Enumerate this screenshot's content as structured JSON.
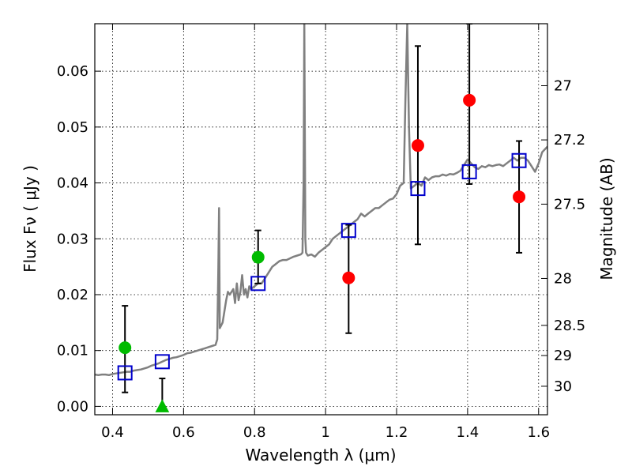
{
  "chart_data": {
    "type": "scatter",
    "xlabel": "Wavelength  λ (μm)",
    "ylabel": "Flux  Fν  ( μJy )",
    "y2label": "Magnitude (AB)",
    "xlim": [
      0.35,
      1.625
    ],
    "ylim": [
      -0.0015,
      0.0685
    ],
    "x_ticks": [
      0.4,
      0.6,
      0.8,
      1.0,
      1.2,
      1.4,
      1.6
    ],
    "x_tick_labels": [
      "0.4",
      "0.6",
      "0.8",
      "1",
      "1.2",
      "1.4",
      "1.6"
    ],
    "y_ticks": [
      0.0,
      0.01,
      0.02,
      0.03,
      0.04,
      0.05,
      0.06
    ],
    "y_tick_labels": [
      "0.00",
      "0.01",
      "0.02",
      "0.03",
      "0.04",
      "0.05",
      "0.06"
    ],
    "y2_ticks": [
      {
        "flux": 0.0574,
        "label": "27"
      },
      {
        "flux": 0.0477,
        "label": "27.2"
      },
      {
        "flux": 0.0362,
        "label": "27.5"
      },
      {
        "flux": 0.0229,
        "label": "28"
      },
      {
        "flux": 0.0145,
        "label": "28.5"
      },
      {
        "flux": 0.0091,
        "label": "29"
      },
      {
        "flux": 0.0036,
        "label": "30"
      }
    ],
    "grid": true,
    "colors": {
      "model": "#808080",
      "box": "#0000cc",
      "green": "#00bb00",
      "red": "#ff0000",
      "errorbar": "#000000"
    },
    "model_spectrum": {
      "x": [
        0.35,
        0.36,
        0.37,
        0.38,
        0.39,
        0.4,
        0.41,
        0.42,
        0.43,
        0.44,
        0.45,
        0.46,
        0.47,
        0.48,
        0.49,
        0.5,
        0.51,
        0.52,
        0.53,
        0.54,
        0.55,
        0.56,
        0.57,
        0.58,
        0.59,
        0.6,
        0.61,
        0.62,
        0.63,
        0.64,
        0.65,
        0.66,
        0.67,
        0.68,
        0.69,
        0.695,
        0.698,
        0.7,
        0.702,
        0.71,
        0.72,
        0.725,
        0.73,
        0.74,
        0.745,
        0.75,
        0.755,
        0.76,
        0.765,
        0.77,
        0.775,
        0.78,
        0.785,
        0.79,
        0.8,
        0.81,
        0.82,
        0.83,
        0.84,
        0.85,
        0.86,
        0.87,
        0.88,
        0.89,
        0.9,
        0.91,
        0.92,
        0.93,
        0.935,
        0.938,
        0.94,
        0.943,
        0.945,
        0.95,
        0.96,
        0.97,
        0.98,
        0.99,
        1.0,
        1.01,
        1.02,
        1.03,
        1.04,
        1.05,
        1.06,
        1.07,
        1.08,
        1.09,
        1.1,
        1.11,
        1.12,
        1.13,
        1.14,
        1.15,
        1.16,
        1.17,
        1.18,
        1.19,
        1.2,
        1.21,
        1.22,
        1.225,
        1.23,
        1.235,
        1.24,
        1.25,
        1.26,
        1.27,
        1.28,
        1.29,
        1.3,
        1.31,
        1.32,
        1.33,
        1.34,
        1.35,
        1.36,
        1.37,
        1.38,
        1.39,
        1.4,
        1.41,
        1.42,
        1.43,
        1.44,
        1.45,
        1.46,
        1.47,
        1.48,
        1.49,
        1.5,
        1.51,
        1.52,
        1.53,
        1.54,
        1.55,
        1.56,
        1.57,
        1.58,
        1.59,
        1.6,
        1.61,
        1.625
      ],
      "y": [
        0.0057,
        0.0056,
        0.0057,
        0.0057,
        0.0056,
        0.0058,
        0.0059,
        0.006,
        0.0061,
        0.0062,
        0.0062,
        0.0064,
        0.0065,
        0.0066,
        0.0068,
        0.007,
        0.0073,
        0.0075,
        0.0077,
        0.008,
        0.0083,
        0.0085,
        0.0087,
        0.0088,
        0.009,
        0.0092,
        0.0095,
        0.0096,
        0.0098,
        0.01,
        0.0102,
        0.0104,
        0.0106,
        0.0108,
        0.011,
        0.012,
        0.025,
        0.0355,
        0.014,
        0.015,
        0.019,
        0.0205,
        0.02,
        0.021,
        0.0185,
        0.022,
        0.019,
        0.0205,
        0.0235,
        0.02,
        0.021,
        0.0195,
        0.0215,
        0.021,
        0.0215,
        0.022,
        0.022,
        0.023,
        0.024,
        0.025,
        0.0255,
        0.026,
        0.0262,
        0.0262,
        0.0265,
        0.0268,
        0.027,
        0.0272,
        0.0275,
        0.04,
        0.0685,
        0.03,
        0.0275,
        0.027,
        0.0272,
        0.0268,
        0.0275,
        0.028,
        0.0285,
        0.029,
        0.03,
        0.0305,
        0.031,
        0.0315,
        0.032,
        0.0325,
        0.033,
        0.0335,
        0.0345,
        0.034,
        0.0345,
        0.035,
        0.0355,
        0.0355,
        0.036,
        0.0365,
        0.037,
        0.0372,
        0.038,
        0.0395,
        0.04,
        0.055,
        0.0685,
        0.05,
        0.039,
        0.0395,
        0.04,
        0.0395,
        0.041,
        0.0405,
        0.041,
        0.0412,
        0.0412,
        0.0415,
        0.0413,
        0.0416,
        0.0415,
        0.0418,
        0.0422,
        0.0432,
        0.0442,
        0.0435,
        0.0428,
        0.0425,
        0.043,
        0.0428,
        0.0432,
        0.043,
        0.0432,
        0.0433,
        0.043,
        0.0435,
        0.044,
        0.0445,
        0.044,
        0.0445,
        0.0445,
        0.044,
        0.043,
        0.042,
        0.0435,
        0.0455,
        0.0465
      ]
    },
    "model_photometry": {
      "x": [
        0.435,
        0.54,
        0.81,
        1.065,
        1.26,
        1.405,
        1.545
      ],
      "y": [
        0.006,
        0.008,
        0.022,
        0.0315,
        0.039,
        0.042,
        0.044
      ]
    },
    "observations": [
      {
        "x": 0.435,
        "y": 0.0105,
        "err_low": 0.0025,
        "err_high": 0.018,
        "marker": "circle",
        "color": "green"
      },
      {
        "x": 0.54,
        "y": 0.0,
        "err_low": 0.0,
        "err_high": 0.005,
        "marker": "triangle",
        "color": "green"
      },
      {
        "x": 0.81,
        "y": 0.0267,
        "err_low": 0.022,
        "err_high": 0.0315,
        "marker": "circle",
        "color": "green"
      },
      {
        "x": 1.065,
        "y": 0.023,
        "err_low": 0.0131,
        "err_high": 0.0325,
        "marker": "circle",
        "color": "red"
      },
      {
        "x": 1.26,
        "y": 0.0467,
        "err_low": 0.029,
        "err_high": 0.0645,
        "marker": "circle",
        "color": "red"
      },
      {
        "x": 1.405,
        "y": 0.0548,
        "err_low": 0.0398,
        "err_high": 0.0685,
        "marker": "circle",
        "color": "red"
      },
      {
        "x": 1.545,
        "y": 0.0375,
        "err_low": 0.0275,
        "err_high": 0.0475,
        "marker": "circle",
        "color": "red"
      }
    ]
  }
}
